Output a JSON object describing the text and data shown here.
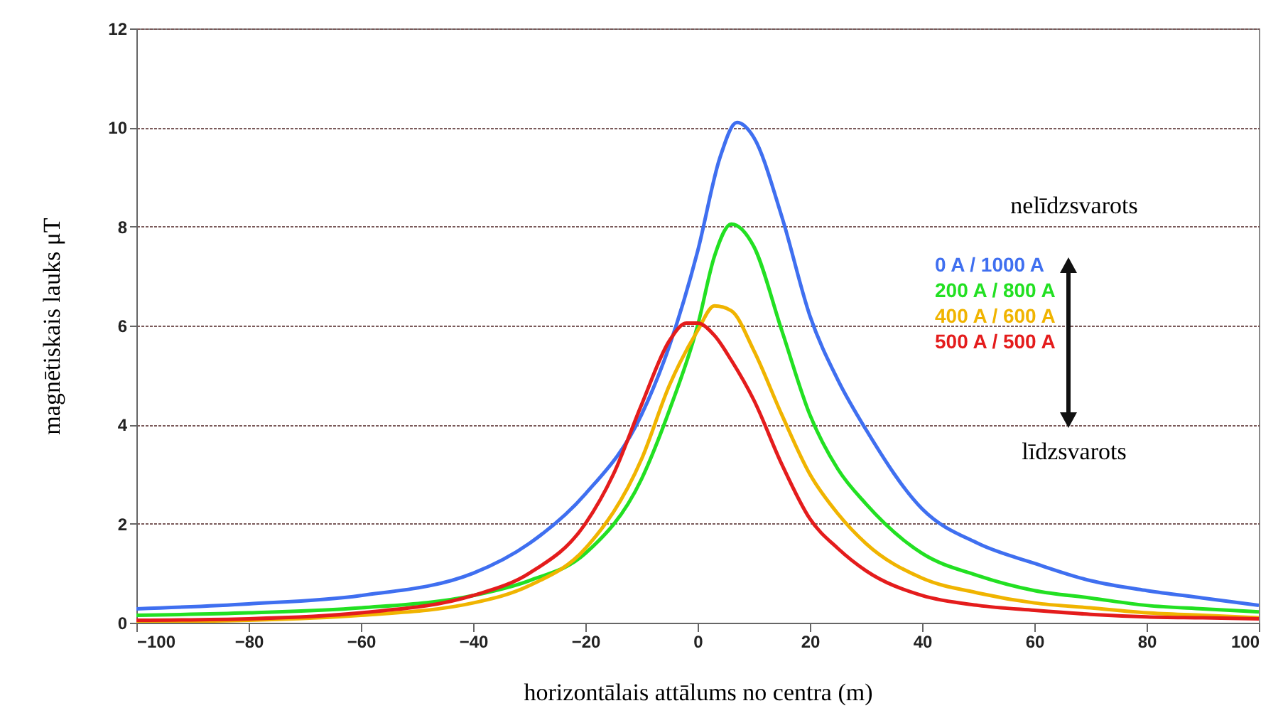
{
  "chart_data": {
    "type": "line",
    "xlabel": "horizontālais attālums no centra (m)",
    "ylabel": "magnētiskais lauks μT",
    "xlim": [
      -100,
      100
    ],
    "xticks": [
      -100,
      -80,
      -60,
      -40,
      -20,
      0,
      20,
      40,
      60,
      80,
      100
    ],
    "ylim": [
      0,
      12
    ],
    "yticks": [
      0,
      2,
      4,
      6,
      8,
      10,
      12
    ],
    "grid": "y",
    "legend": "right",
    "annotations": [
      "nelīdzsvarots",
      "līdzsvarots"
    ],
    "series": [
      {
        "name": "0 A / 1000 A",
        "color": "#3f6ff0",
        "x": [
          -100,
          -80,
          -60,
          -40,
          -30,
          -20,
          -10,
          -5,
          0,
          4,
          7,
          10,
          15,
          20,
          25,
          30,
          40,
          50,
          60,
          70,
          80,
          90,
          100
        ],
        "values": [
          0.28,
          0.38,
          0.55,
          1.0,
          1.6,
          2.6,
          4.2,
          5.6,
          7.5,
          9.4,
          10.1,
          9.8,
          8.2,
          6.2,
          4.9,
          3.9,
          2.3,
          1.6,
          1.2,
          0.85,
          0.65,
          0.5,
          0.35
        ]
      },
      {
        "name": "200 A / 800 A",
        "color": "#22e022",
        "x": [
          -100,
          -80,
          -60,
          -40,
          -30,
          -20,
          -10,
          -5,
          0,
          3,
          6,
          10,
          15,
          20,
          25,
          30,
          40,
          50,
          60,
          70,
          80,
          90,
          100
        ],
        "values": [
          0.15,
          0.2,
          0.3,
          0.55,
          0.85,
          1.4,
          2.9,
          4.3,
          6.0,
          7.4,
          8.05,
          7.6,
          5.9,
          4.2,
          3.1,
          2.4,
          1.4,
          0.95,
          0.65,
          0.5,
          0.35,
          0.28,
          0.22
        ]
      },
      {
        "name": "400 A / 600 A",
        "color": "#f0b400",
        "x": [
          -100,
          -80,
          -60,
          -40,
          -30,
          -20,
          -10,
          -5,
          0,
          3,
          6,
          10,
          15,
          20,
          25,
          30,
          40,
          50,
          60,
          70,
          80,
          90,
          100
        ],
        "values": [
          0.02,
          0.05,
          0.15,
          0.4,
          0.75,
          1.5,
          3.3,
          4.8,
          5.9,
          6.4,
          6.3,
          5.5,
          4.2,
          3.0,
          2.2,
          1.6,
          0.9,
          0.6,
          0.4,
          0.3,
          0.2,
          0.15,
          0.1
        ]
      },
      {
        "name": "500 A / 500 A",
        "color": "#e41c1c",
        "x": [
          -100,
          -80,
          -60,
          -40,
          -30,
          -20,
          -15,
          -10,
          -5,
          -2,
          0,
          3,
          6,
          10,
          15,
          20,
          25,
          30,
          40,
          50,
          60,
          70,
          80,
          90,
          100
        ],
        "values": [
          0.05,
          0.08,
          0.2,
          0.55,
          1.0,
          2.0,
          3.0,
          4.4,
          5.7,
          6.05,
          6.05,
          5.8,
          5.3,
          4.5,
          3.2,
          2.1,
          1.5,
          1.05,
          0.55,
          0.35,
          0.25,
          0.17,
          0.12,
          0.1,
          0.08
        ]
      }
    ]
  }
}
